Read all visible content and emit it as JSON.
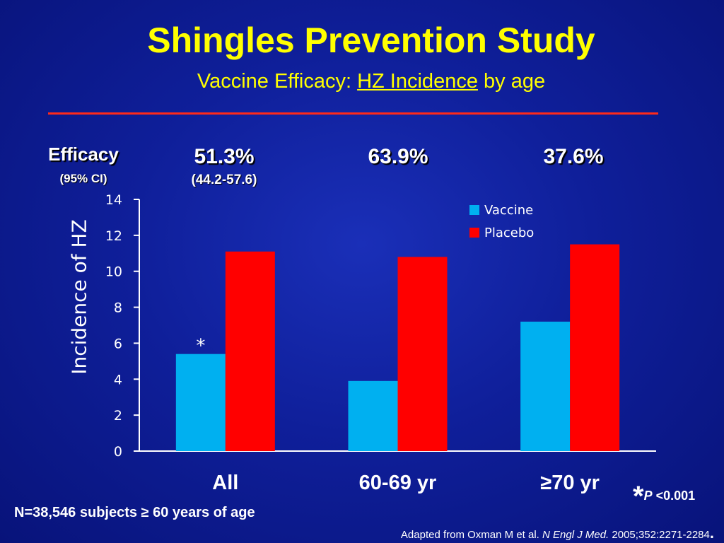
{
  "slide": {
    "title": "Shingles Prevention Study",
    "subtitle_pre": "Vaccine Efficacy: ",
    "subtitle_underlined": "HZ Incidence",
    "subtitle_post": " by age",
    "rule_color": "#ff2a1a"
  },
  "efficacy": {
    "label": "Efficacy",
    "ci_label": "(95% CI)",
    "values": [
      {
        "value": "51.3%",
        "ci": "(44.2-57.6)"
      },
      {
        "value": "63.9%",
        "ci": ""
      },
      {
        "value": "37.6%",
        "ci": ""
      }
    ]
  },
  "chart_data": {
    "type": "bar",
    "categories": [
      "All",
      "60-69 yr",
      "≥70 yr"
    ],
    "series": [
      {
        "name": "Vaccine",
        "color": "#00b0f0",
        "values": [
          5.4,
          3.9,
          7.2
        ]
      },
      {
        "name": "Placebo",
        "color": "#ff0000",
        "values": [
          11.1,
          10.8,
          11.5
        ]
      }
    ],
    "ylabel": "Incidence of HZ",
    "ylim": [
      0,
      14
    ],
    "yticks": [
      0,
      2,
      4,
      6,
      8,
      10,
      12,
      14
    ],
    "annotations": [
      {
        "category": "All",
        "series": "Vaccine",
        "text": "*"
      }
    ],
    "legend_position": "top-right",
    "grid": false
  },
  "footnotes": {
    "sample": "N=38,546 subjects ≥ 60 years of age",
    "pvalue_star": "*",
    "pvalue_p": "P",
    "pvalue_rest": " <0.001",
    "source_pre": "Adapted from Oxman M et al. ",
    "source_journal": "N Engl J Med.",
    "source_post": " 2005;352:2271-2284",
    "source_end": "."
  }
}
